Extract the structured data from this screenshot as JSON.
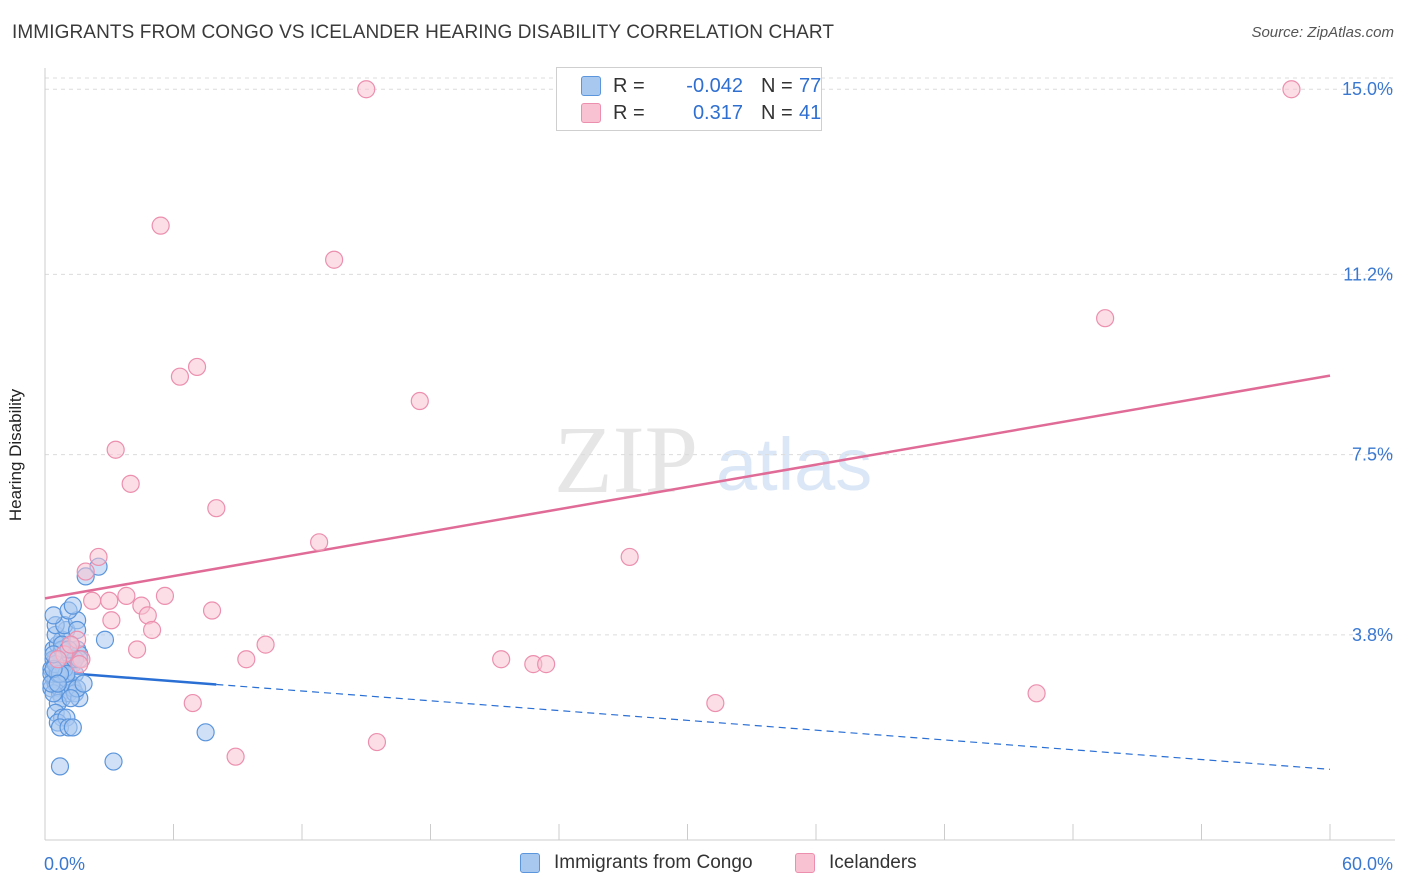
{
  "header": {
    "title": "IMMIGRANTS FROM CONGO VS ICELANDER HEARING DISABILITY CORRELATION CHART",
    "source": "Source: ZipAtlas.com"
  },
  "watermark": {
    "zip": "ZIP",
    "atlas": "atlas"
  },
  "legend": {
    "r_label": "R =",
    "n_label": "N =",
    "rows": [
      {
        "name": "Immigrants from Congo",
        "r": "-0.042",
        "n": "77",
        "color": "#6fa8e8"
      },
      {
        "name": "Icelanders",
        "r": "0.317",
        "n": "41",
        "color": "#f19ab6"
      }
    ]
  },
  "colors": {
    "congo_fill": "#a9c8f0",
    "congo_stroke": "#5b95dc",
    "congo_line": "#2a6fd4",
    "iceland_fill": "#f8c2d2",
    "iceland_stroke": "#ec8fae",
    "iceland_line": "#e06b96",
    "tick_label": "#3a78d0",
    "grid": "#dcdcdc"
  },
  "chart_data": {
    "type": "scatter",
    "title": "IMMIGRANTS FROM CONGO VS ICELANDER HEARING DISABILITY CORRELATION CHART",
    "ylabel": "Hearing Disability",
    "xlim": [
      0,
      60
    ],
    "ylim": [
      0,
      15.6
    ],
    "x_tick_labels": [
      "0.0%",
      "60.0%"
    ],
    "y_ticks": [
      3.8,
      7.5,
      11.2,
      15.0
    ],
    "y_tick_labels": [
      "3.8%",
      "7.5%",
      "11.2%",
      "15.0%"
    ],
    "grid": "horizontal dashed",
    "series": [
      {
        "name": "Immigrants from Congo",
        "points": [
          [
            0.3,
            3.1
          ],
          [
            0.4,
            2.9
          ],
          [
            0.5,
            3.3
          ],
          [
            0.6,
            3.0
          ],
          [
            0.3,
            2.7
          ],
          [
            0.7,
            3.4
          ],
          [
            0.8,
            3.2
          ],
          [
            0.5,
            2.8
          ],
          [
            0.9,
            3.0
          ],
          [
            0.4,
            3.5
          ],
          [
            1.0,
            3.3
          ],
          [
            0.6,
            3.6
          ],
          [
            0.7,
            2.6
          ],
          [
            1.1,
            3.1
          ],
          [
            0.5,
            2.9
          ],
          [
            0.8,
            3.7
          ],
          [
            1.2,
            2.8
          ],
          [
            0.9,
            3.4
          ],
          [
            0.3,
            3.0
          ],
          [
            1.3,
            3.2
          ],
          [
            0.6,
            3.1
          ],
          [
            0.4,
            3.3
          ],
          [
            1.5,
            3.5
          ],
          [
            0.7,
            2.7
          ],
          [
            1.0,
            2.9
          ],
          [
            0.5,
            3.8
          ],
          [
            1.4,
            3.0
          ],
          [
            0.8,
            2.5
          ],
          [
            1.1,
            2.6
          ],
          [
            0.6,
            2.4
          ],
          [
            0.9,
            3.2
          ],
          [
            1.6,
            3.4
          ],
          [
            0.4,
            2.6
          ],
          [
            1.2,
            3.6
          ],
          [
            0.7,
            3.1
          ],
          [
            1.0,
            3.9
          ],
          [
            1.3,
            2.7
          ],
          [
            0.5,
            2.2
          ],
          [
            0.8,
            2.1
          ],
          [
            1.4,
            2.6
          ],
          [
            0.6,
            2.0
          ],
          [
            1.0,
            2.1
          ],
          [
            0.7,
            1.9
          ],
          [
            1.1,
            1.9
          ],
          [
            1.3,
            1.9
          ],
          [
            0.5,
            4.0
          ],
          [
            0.9,
            4.0
          ],
          [
            1.5,
            4.1
          ],
          [
            0.4,
            4.2
          ],
          [
            1.1,
            4.3
          ],
          [
            1.3,
            4.4
          ],
          [
            1.5,
            3.9
          ],
          [
            1.6,
            2.5
          ],
          [
            1.5,
            2.7
          ],
          [
            0.3,
            2.8
          ],
          [
            0.6,
            3.0
          ],
          [
            1.2,
            3.3
          ],
          [
            0.8,
            3.5
          ],
          [
            0.9,
            3.1
          ],
          [
            0.5,
            3.2
          ],
          [
            1.0,
            3.0
          ],
          [
            1.4,
            3.3
          ],
          [
            0.7,
            3.0
          ],
          [
            1.6,
            3.3
          ],
          [
            2.8,
            3.7
          ],
          [
            1.8,
            2.8
          ],
          [
            0.4,
            3.1
          ],
          [
            0.6,
            2.8
          ],
          [
            1.2,
            2.5
          ],
          [
            2.5,
            5.2
          ],
          [
            1.9,
            5.0
          ],
          [
            0.7,
            1.1
          ],
          [
            3.2,
            1.2
          ],
          [
            7.5,
            1.8
          ],
          [
            0.8,
            3.6
          ],
          [
            0.4,
            3.4
          ],
          [
            1.1,
            3.5
          ]
        ]
      },
      {
        "name": "Icelanders",
        "points": [
          [
            15.0,
            15.0
          ],
          [
            58.2,
            15.0
          ],
          [
            5.4,
            12.2
          ],
          [
            13.5,
            11.5
          ],
          [
            49.5,
            10.3
          ],
          [
            7.1,
            9.3
          ],
          [
            6.3,
            9.1
          ],
          [
            17.5,
            8.6
          ],
          [
            3.3,
            7.6
          ],
          [
            4.0,
            6.9
          ],
          [
            8.0,
            6.4
          ],
          [
            12.8,
            5.7
          ],
          [
            2.5,
            5.4
          ],
          [
            27.3,
            5.4
          ],
          [
            1.9,
            5.1
          ],
          [
            3.8,
            4.6
          ],
          [
            5.6,
            4.6
          ],
          [
            2.2,
            4.5
          ],
          [
            3.0,
            4.5
          ],
          [
            4.5,
            4.4
          ],
          [
            7.8,
            4.3
          ],
          [
            4.8,
            4.2
          ],
          [
            3.1,
            4.1
          ],
          [
            5.0,
            3.9
          ],
          [
            1.5,
            3.7
          ],
          [
            10.3,
            3.6
          ],
          [
            4.3,
            3.5
          ],
          [
            0.9,
            3.4
          ],
          [
            1.7,
            3.3
          ],
          [
            1.6,
            3.2
          ],
          [
            9.4,
            3.3
          ],
          [
            21.3,
            3.3
          ],
          [
            22.8,
            3.2
          ],
          [
            23.4,
            3.2
          ],
          [
            6.9,
            2.4
          ],
          [
            31.3,
            2.4
          ],
          [
            46.3,
            2.6
          ],
          [
            15.5,
            1.6
          ],
          [
            8.9,
            1.3
          ],
          [
            1.2,
            3.6
          ],
          [
            0.6,
            3.3
          ]
        ]
      }
    ],
    "trend_lines": [
      {
        "name": "Immigrants from Congo",
        "solid_x": [
          0,
          8.0
        ],
        "dashed_x": [
          8.0,
          60
        ],
        "intercept": 3.05,
        "slope": -0.0335
      },
      {
        "name": "Icelanders",
        "x": [
          0,
          60
        ],
        "intercept": 4.55,
        "slope": 0.0762
      }
    ]
  }
}
